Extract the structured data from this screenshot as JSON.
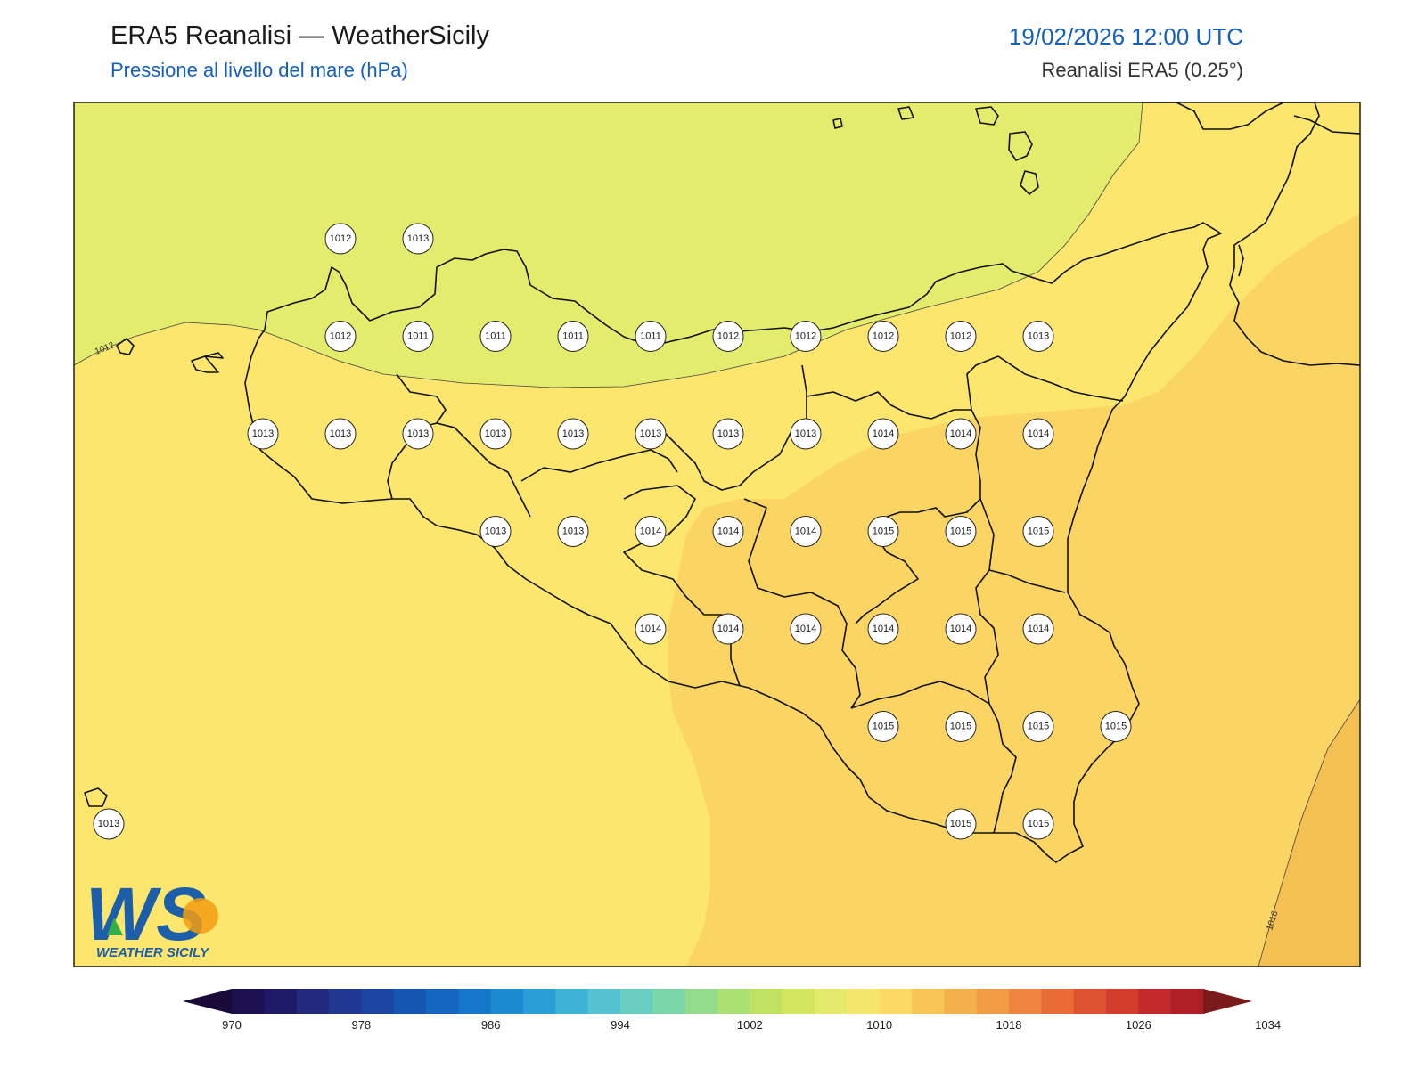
{
  "header": {
    "title": "ERA5 Reanalisi — WeatherSicily",
    "subtitle": "Pressione al livello del mare (hPa)",
    "datetime": "19/02/2026 12:00 UTC",
    "source": "Reanalisi ERA5 (0.25°)"
  },
  "contour_labels": [
    "1012",
    "1016"
  ],
  "stations": [
    {
      "v": "1012",
      "c": 1,
      "r": 0
    },
    {
      "v": "1013",
      "c": 2,
      "r": 0
    },
    {
      "v": "1012",
      "c": 1,
      "r": 1
    },
    {
      "v": "1011",
      "c": 2,
      "r": 1
    },
    {
      "v": "1011",
      "c": 3,
      "r": 1
    },
    {
      "v": "1011",
      "c": 4,
      "r": 1
    },
    {
      "v": "1011",
      "c": 5,
      "r": 1
    },
    {
      "v": "1012",
      "c": 6,
      "r": 1
    },
    {
      "v": "1012",
      "c": 7,
      "r": 1
    },
    {
      "v": "1012",
      "c": 8,
      "r": 1
    },
    {
      "v": "1012",
      "c": 9,
      "r": 1
    },
    {
      "v": "1013",
      "c": 10,
      "r": 1
    },
    {
      "v": "1013",
      "c": 0,
      "r": 2
    },
    {
      "v": "1013",
      "c": 1,
      "r": 2
    },
    {
      "v": "1013",
      "c": 2,
      "r": 2
    },
    {
      "v": "1013",
      "c": 3,
      "r": 2
    },
    {
      "v": "1013",
      "c": 4,
      "r": 2
    },
    {
      "v": "1013",
      "c": 5,
      "r": 2
    },
    {
      "v": "1013",
      "c": 6,
      "r": 2
    },
    {
      "v": "1013",
      "c": 7,
      "r": 2
    },
    {
      "v": "1014",
      "c": 8,
      "r": 2
    },
    {
      "v": "1014",
      "c": 9,
      "r": 2
    },
    {
      "v": "1014",
      "c": 10,
      "r": 2
    },
    {
      "v": "1013",
      "c": 3,
      "r": 3
    },
    {
      "v": "1013",
      "c": 4,
      "r": 3
    },
    {
      "v": "1014",
      "c": 5,
      "r": 3
    },
    {
      "v": "1014",
      "c": 6,
      "r": 3
    },
    {
      "v": "1014",
      "c": 7,
      "r": 3
    },
    {
      "v": "1015",
      "c": 8,
      "r": 3
    },
    {
      "v": "1015",
      "c": 9,
      "r": 3
    },
    {
      "v": "1015",
      "c": 10,
      "r": 3
    },
    {
      "v": "1014",
      "c": 5,
      "r": 4
    },
    {
      "v": "1014",
      "c": 6,
      "r": 4
    },
    {
      "v": "1014",
      "c": 7,
      "r": 4
    },
    {
      "v": "1014",
      "c": 8,
      "r": 4
    },
    {
      "v": "1014",
      "c": 9,
      "r": 4
    },
    {
      "v": "1014",
      "c": 10,
      "r": 4
    },
    {
      "v": "1015",
      "c": 8,
      "r": 5
    },
    {
      "v": "1015",
      "c": 9,
      "r": 5
    },
    {
      "v": "1015",
      "c": 10,
      "r": 5
    },
    {
      "v": "1015",
      "c": 11,
      "r": 5
    },
    {
      "v": "1013",
      "c": -2,
      "r": 6
    },
    {
      "v": "1015",
      "c": 9,
      "r": 6
    },
    {
      "v": "1015",
      "c": 10,
      "r": 6
    }
  ],
  "colorbar": {
    "ticks": [
      "970",
      "978",
      "986",
      "994",
      "1002",
      "1010",
      "1018",
      "1026",
      "1034"
    ],
    "colors": [
      "#1d1050",
      "#1f1a68",
      "#212a7e",
      "#203891",
      "#1b46a3",
      "#1656b3",
      "#1465bf",
      "#1577c9",
      "#1b8ad1",
      "#2a9ed7",
      "#3fb2d8",
      "#55c2d0",
      "#68cfc0",
      "#7bd7a8",
      "#93dc8c",
      "#aadf72",
      "#c1e260",
      "#d4e65e",
      "#e3ea6c",
      "#f4e66c",
      "#fbd962",
      "#f8c557",
      "#f5b04e",
      "#f29b45",
      "#ee843d",
      "#e96b36",
      "#df5430",
      "#d23d2c",
      "#c32a2a",
      "#b01f26"
    ],
    "min_color": "#1a0a3a",
    "max_color": "#7a1a1a"
  },
  "logo": {
    "text": "WS",
    "caption": "WEATHER SICILY",
    "colors": [
      "#1d5ea8",
      "#2a8bd4",
      "#f39c12",
      "#2fae4a"
    ]
  },
  "map_colors": {
    "band_1010_1012": "#e3ec6c",
    "band_1012_1014": "#fce66e",
    "band_1014_1016": "#fad563",
    "band_1016_1018": "#f5c052",
    "coastline": "#111111"
  }
}
